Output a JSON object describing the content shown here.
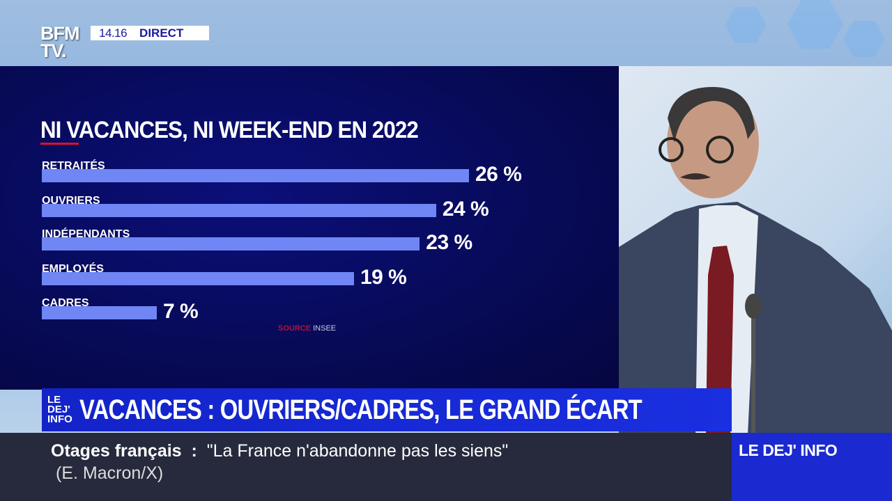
{
  "channel": {
    "logo": "BFM TV.",
    "time": "14.16",
    "live": "DIRECT"
  },
  "chart_data": {
    "type": "bar",
    "orientation": "horizontal",
    "title": "NI VACANCES, NI WEEK-END EN 2022",
    "categories": [
      "RETRAITÉS",
      "OUVRIERS",
      "INDÉPENDANTS",
      "EMPLOYÉS",
      "CADRES"
    ],
    "values": [
      26,
      24,
      23,
      19,
      7
    ],
    "value_labels": [
      "26 %",
      "24 %",
      "23 %",
      "19 %",
      "7 %"
    ],
    "unit": "%",
    "bar_color": "#6f86f4",
    "source_label": "SOURCE",
    "source": "INSEE",
    "grid": false
  },
  "banner": {
    "show_logo": "LE DEJ' INFO",
    "headline": "VACANCES : OUVRIERS/CADRES, LE GRAND ÉCART"
  },
  "ticker": {
    "topic": "Otages français",
    "separator": ":",
    "quote": "\"La France n'abandonne pas les siens\"",
    "attribution": "(E. Macron/X)"
  },
  "show_name": "LE DEJ' INFO"
}
